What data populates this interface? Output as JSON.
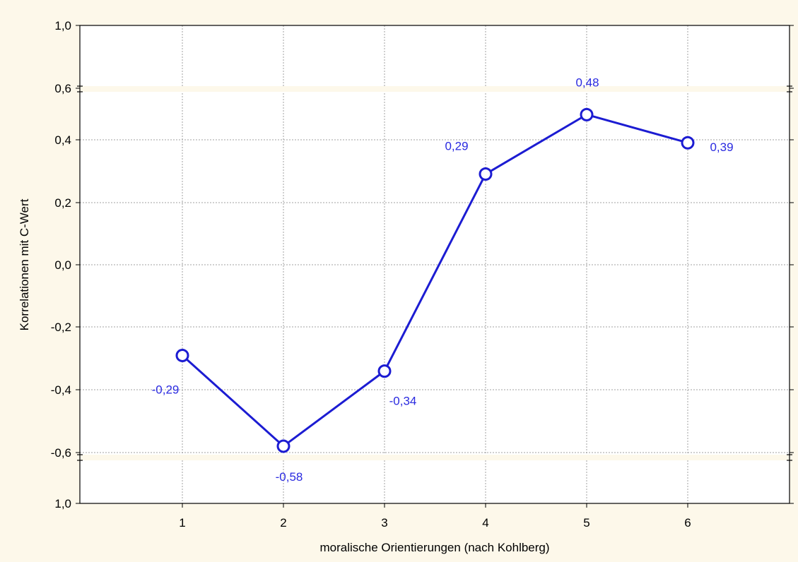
{
  "chart_data": {
    "type": "line",
    "xlabel": "moralische Orientierungen (nach Kohlberg)",
    "ylabel": "Korrelationen mit C-Wert",
    "x": [
      1,
      2,
      3,
      4,
      5,
      6
    ],
    "x_tick_labels": [
      "1",
      "2",
      "3",
      "4",
      "5",
      "6"
    ],
    "y_tick_labels": [
      "1,0",
      "0,6",
      "0,4",
      "0,2",
      "0,0",
      "-0,2",
      "-0,4",
      "-0,6",
      "1,0"
    ],
    "ylim": [
      -0.6,
      0.6
    ],
    "axis_break": true,
    "grid": true,
    "series": [
      {
        "values": [
          -0.29,
          -0.58,
          -0.34,
          0.29,
          0.48,
          0.39
        ],
        "data_labels": [
          "-0,29",
          "-0,58",
          "-0,34",
          "0,29",
          "0,48",
          "0,39"
        ],
        "color": "#1c1cd2"
      }
    ]
  },
  "colors": {
    "background": "#fdf8ea",
    "plot_area": "#ffffff",
    "grid": "#a0a0a0",
    "series": "#1c1cd2",
    "label_text": "#2a2ae0"
  }
}
